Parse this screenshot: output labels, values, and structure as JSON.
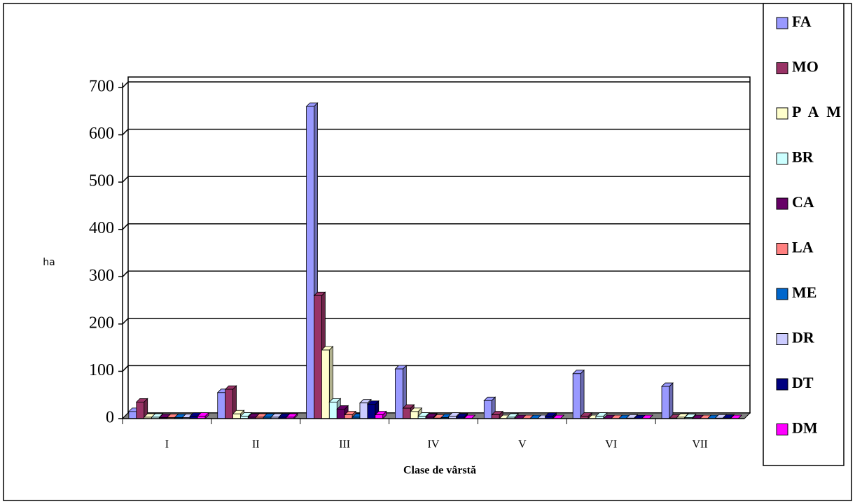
{
  "chart_data": {
    "type": "bar3d",
    "x_label": "Clase de vârstă",
    "y_label": "ha",
    "categories": [
      "I",
      "II",
      "III",
      "IV",
      "V",
      "VI",
      "VII"
    ],
    "series": [
      {
        "name": "FA",
        "color": "#9999ff",
        "values": [
          15,
          55,
          660,
          105,
          38,
          95,
          68
        ]
      },
      {
        "name": "MO",
        "color": "#993366",
        "values": [
          35,
          62,
          260,
          22,
          8,
          5,
          1
        ]
      },
      {
        "name": "PAM",
        "color": "#ffffcc",
        "values": [
          3,
          10,
          145,
          15,
          0,
          0,
          3
        ]
      },
      {
        "name": "BR",
        "color": "#ccffff",
        "values": [
          3,
          5,
          35,
          5,
          3,
          5,
          2
        ]
      },
      {
        "name": "CA",
        "color": "#660066",
        "values": [
          2,
          3,
          20,
          3,
          0,
          0,
          0
        ]
      },
      {
        "name": "LA",
        "color": "#ff8080",
        "values": [
          2,
          3,
          8,
          1,
          0,
          0,
          0
        ]
      },
      {
        "name": "ME",
        "color": "#0066cc",
        "values": [
          2,
          3,
          3,
          2,
          0,
          0,
          0
        ]
      },
      {
        "name": "DR",
        "color": "#ccccff",
        "values": [
          2,
          3,
          33,
          5,
          0,
          1,
          1
        ]
      },
      {
        "name": "DT",
        "color": "#000080",
        "values": [
          5,
          3,
          30,
          3,
          5,
          0,
          1
        ]
      },
      {
        "name": "DM",
        "color": "#ff00ff",
        "values": [
          5,
          3,
          8,
          0,
          0,
          0,
          0
        ]
      }
    ],
    "ylim": [
      0,
      700
    ],
    "yticks": [
      0,
      100,
      200,
      300,
      400,
      500,
      600,
      700
    ],
    "grid": true
  }
}
